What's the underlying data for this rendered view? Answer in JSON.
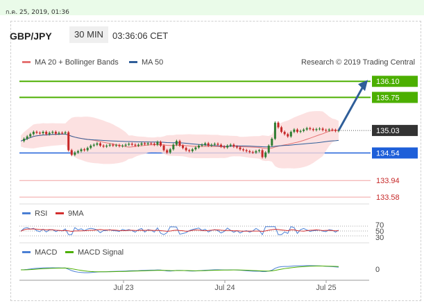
{
  "timestamp": "ก.ค. 25, 2019, 01:36",
  "header": {
    "pair": "GBP/JPY",
    "timeframe": "30 MIN",
    "clock": "03:36:06 CET"
  },
  "legend": {
    "ma_bb": "MA 20 + Bollinger Bands",
    "ma50": "MA 50",
    "credit": "Research © 2019 Trading Central"
  },
  "colors": {
    "bull": "#2e7d32",
    "bear": "#c62828",
    "resistance": "#4caf00",
    "support": "#1e5fd9",
    "ma50": "#2f5e99",
    "ma20": "#e57373",
    "band": "#fbdada"
  },
  "chart_data": [
    {
      "type": "candlestick",
      "title": "GBP/JPY 30 MIN",
      "x_ticks": [
        "Jul 23",
        "Jul 24",
        "Jul 25"
      ],
      "levels": [
        {
          "label": "136.10",
          "value": 136.1,
          "kind": "resistance"
        },
        {
          "label": "135.75",
          "value": 135.75,
          "kind": "resistance"
        },
        {
          "label": "135.03",
          "value": 135.03,
          "kind": "last"
        },
        {
          "label": "134.54",
          "value": 134.54,
          "kind": "support"
        },
        {
          "label": "133.94",
          "value": 133.94,
          "kind": "weak"
        },
        {
          "label": "133.58",
          "value": 133.58,
          "kind": "weak"
        }
      ],
      "ylim": [
        133.4,
        136.3
      ],
      "series_close": [
        134.8,
        134.85,
        134.9,
        134.95,
        135.0,
        134.98,
        134.97,
        135.0,
        134.95,
        134.98,
        135.0,
        134.96,
        134.98,
        134.97,
        134.99,
        134.6,
        134.5,
        134.55,
        134.58,
        134.62,
        134.6,
        134.65,
        134.7,
        134.72,
        134.75,
        134.7,
        134.68,
        134.7,
        134.72,
        134.7,
        134.71,
        134.69,
        134.7,
        134.72,
        134.74,
        134.72,
        134.7,
        134.72,
        134.75,
        134.73,
        134.75,
        134.74,
        134.72,
        134.78,
        134.7,
        134.6,
        134.55,
        134.62,
        134.72,
        134.8,
        134.7,
        134.65,
        134.6,
        134.58,
        134.62,
        134.66,
        134.7,
        134.72,
        134.75,
        134.7,
        134.72,
        134.74,
        134.72,
        134.68,
        134.66,
        134.7,
        134.72,
        134.68,
        134.66,
        134.62,
        134.6,
        134.58,
        134.56,
        134.55,
        134.58,
        134.6,
        134.45,
        134.55,
        134.7,
        134.85,
        135.2,
        135.1,
        135.0,
        134.95,
        134.9,
        135.0,
        135.05,
        135.0,
        135.02,
        135.05,
        135.08,
        135.06,
        135.04,
        135.06,
        135.07,
        135.04,
        135.03,
        135.05,
        135.04,
        135.02,
        135.03
      ],
      "projection": {
        "from": 135.03,
        "to": 136.1
      },
      "panels": [
        {
          "name": "RSI",
          "series": [
            "RSI",
            "9MA"
          ],
          "levels": [
            70,
            50,
            30
          ]
        },
        {
          "name": "MACD",
          "series": [
            "MACD",
            "MACD Signal"
          ],
          "levels": [
            0
          ]
        }
      ]
    }
  ],
  "rsi": {
    "label": "RSI",
    "ma_label": "9MA",
    "l70": "70",
    "l50": "50",
    "l30": "30"
  },
  "macd": {
    "label": "MACD",
    "signal_label": "MACD Signal",
    "zero": "0"
  }
}
